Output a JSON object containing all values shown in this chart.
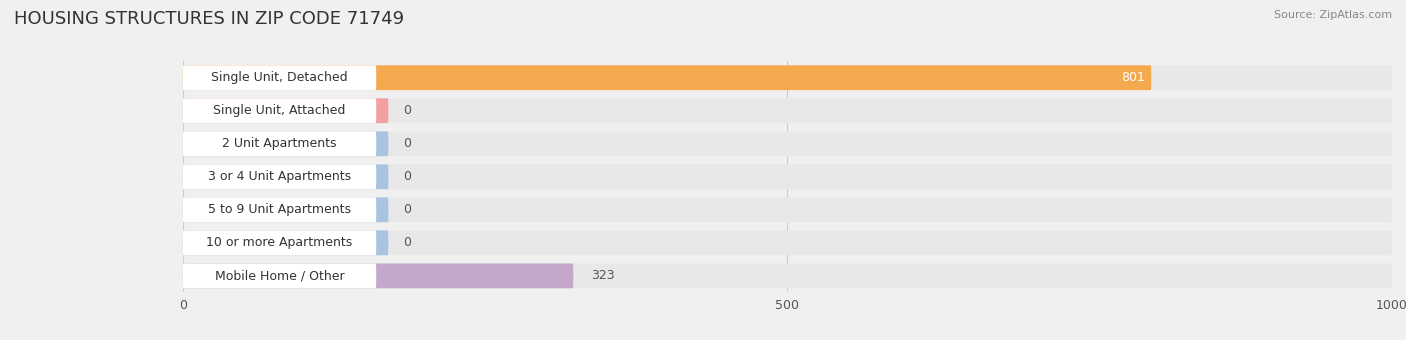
{
  "title": "HOUSING STRUCTURES IN ZIP CODE 71749",
  "source": "Source: ZipAtlas.com",
  "categories": [
    "Single Unit, Detached",
    "Single Unit, Attached",
    "2 Unit Apartments",
    "3 or 4 Unit Apartments",
    "5 to 9 Unit Apartments",
    "10 or more Apartments",
    "Mobile Home / Other"
  ],
  "values": [
    801,
    0,
    0,
    0,
    0,
    0,
    323
  ],
  "bar_colors": [
    "#F5A94E",
    "#F4A0A0",
    "#A8C4E0",
    "#A8C4E0",
    "#A8C4E0",
    "#A8C4E0",
    "#C4A8CC"
  ],
  "xlim": [
    0,
    1000
  ],
  "xticks": [
    0,
    500,
    1000
  ],
  "background_color": "#f0f0f0",
  "row_background_color": "#ffffff",
  "bar_row_bg_color": "#e8e8e8",
  "title_fontsize": 13,
  "label_fontsize": 9,
  "value_fontsize": 9,
  "tick_fontsize": 9,
  "zero_bar_display_value": 170
}
